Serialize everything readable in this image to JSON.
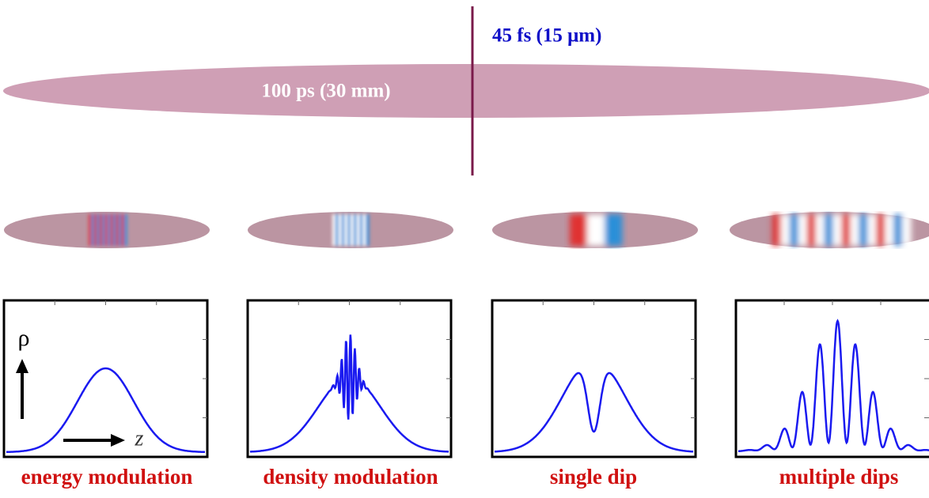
{
  "top": {
    "short_label": "45 fs (15 μm)",
    "long_label": "100 ps (30 mm)"
  },
  "axes": {
    "y_label": "ρ",
    "x_label": "z"
  },
  "panels": [
    {
      "caption": "energy modulation"
    },
    {
      "caption": "density modulation"
    },
    {
      "caption": "single dip"
    },
    {
      "caption": "multiple dips"
    }
  ]
}
